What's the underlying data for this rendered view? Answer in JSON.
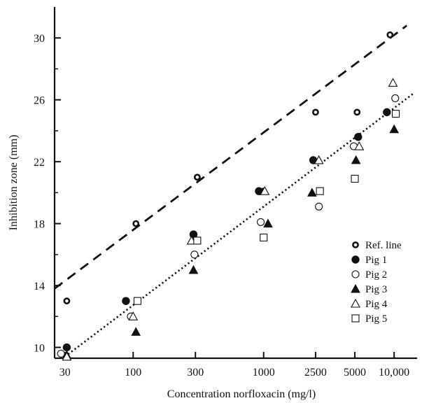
{
  "chart_data": {
    "type": "scatter",
    "title": "",
    "xlabel": "Concentration norfloxacin (mg/l)",
    "ylabel": "Inhibition zone (mm)",
    "x_scale": "log",
    "xlim": [
      25,
      15000
    ],
    "ylim": [
      9.3,
      32
    ],
    "x_ticks": [
      30,
      100,
      300,
      1000,
      2500,
      5000,
      10000
    ],
    "x_tick_labels": [
      "30",
      "100",
      "300",
      "1000",
      "2500",
      "5000",
      "10,000"
    ],
    "y_ticks": [
      10,
      14,
      18,
      22,
      26,
      30
    ],
    "y_tick_labels": [
      "10",
      "14",
      "18",
      "22",
      "26",
      "30"
    ],
    "grid": false,
    "legend_position": "right",
    "series": [
      {
        "name": "Ref. line",
        "marker": "open-circle-thick",
        "points": [
          [
            31,
            13
          ],
          [
            105,
            18
          ],
          [
            310,
            21
          ],
          [
            1000,
            20.1
          ],
          [
            2500,
            25.2
          ],
          [
            5200,
            25.2
          ],
          [
            9300,
            30.2
          ]
        ]
      },
      {
        "name": "Pig 1",
        "marker": "filled-circle",
        "points": [
          [
            31,
            10
          ],
          [
            88,
            13
          ],
          [
            290,
            17.3
          ],
          [
            920,
            20.1
          ],
          [
            2400,
            22.1
          ],
          [
            5300,
            23.6
          ],
          [
            8800,
            25.2
          ]
        ]
      },
      {
        "name": "Pig 2",
        "marker": "open-circle",
        "points": [
          [
            28,
            9.6
          ],
          [
            96,
            12
          ],
          [
            295,
            16
          ],
          [
            950,
            18.1
          ],
          [
            2650,
            19.1
          ],
          [
            4900,
            23
          ],
          [
            10200,
            26.1
          ]
        ]
      },
      {
        "name": "Pig 3",
        "marker": "filled-triangle",
        "points": [
          [
            31,
            9.5
          ],
          [
            105,
            11
          ],
          [
            290,
            15
          ],
          [
            1080,
            18
          ],
          [
            2350,
            20
          ],
          [
            5100,
            22.1
          ],
          [
            10000,
            24.1
          ]
        ]
      },
      {
        "name": "Pig 4",
        "marker": "open-triangle",
        "points": [
          [
            31,
            9.4
          ],
          [
            100,
            12
          ],
          [
            280,
            16.9
          ],
          [
            1020,
            20.1
          ],
          [
            2650,
            22.1
          ],
          [
            5400,
            23
          ],
          [
            9800,
            27.1
          ]
        ]
      },
      {
        "name": "Pig 5",
        "marker": "open-square",
        "points": [
          [
            108,
            13
          ],
          [
            310,
            16.9
          ],
          [
            1000,
            17.1
          ],
          [
            2700,
            20.1
          ],
          [
            5000,
            20.9
          ],
          [
            10300,
            25.1
          ]
        ]
      }
    ],
    "fit_lines": [
      {
        "style": "dashed",
        "from": [
          25,
          13.8
        ],
        "to": [
          12500,
          30.8
        ]
      },
      {
        "style": "dotted",
        "from": [
          30,
          9.4
        ],
        "to": [
          14000,
          26.4
        ]
      }
    ]
  }
}
